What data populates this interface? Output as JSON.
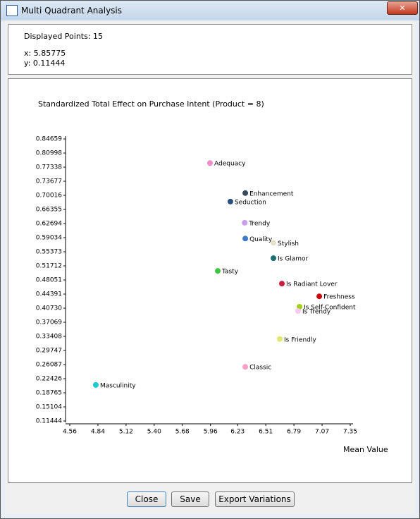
{
  "window": {
    "title": "Multi Quadrant Analysis"
  },
  "info": {
    "count": "Displayed Points: 15",
    "x": "x: 5.85775",
    "y": "y: 0.11444"
  },
  "chart_data": {
    "type": "scatter",
    "title": "Standardized Total Effect on Purchase Intent (Product = 8)",
    "x_label": "Mean Value",
    "labels": [
      "Adequacy",
      "Enhancement",
      "Seduction",
      "Trendy",
      "Quality",
      "Stylish",
      "Is Glamor",
      "Tasty",
      "Is Radiant Lover",
      "Freshness",
      "Is Self-Confident",
      "Is Trendy",
      "Is Friendly",
      "Classic",
      "Masculinity"
    ],
    "x": [
      5.955,
      6.306,
      6.158,
      6.3,
      6.306,
      6.586,
      6.586,
      6.032,
      6.67,
      7.042,
      6.845,
      6.831,
      6.649,
      6.306,
      4.819
    ],
    "values": [
      0.784,
      0.706,
      0.684,
      0.629,
      0.588,
      0.577,
      0.537,
      0.504,
      0.471,
      0.438,
      0.411,
      0.4,
      0.327,
      0.255,
      0.208
    ],
    "colors": [
      "#f08cc8",
      "#3c4860",
      "#2a5080",
      "#c8a0f0",
      "#3c7cc8",
      "#e4e4cc",
      "#1a7070",
      "#3cc83c",
      "#c81e3c",
      "#c80a0a",
      "#a0d010",
      "#f8c8f0",
      "#e0e870",
      "#f8a0c8",
      "#20c8d0"
    ],
    "xlim": [
      4.56,
      7.35
    ],
    "xticks": [
      4.56,
      4.84,
      5.12,
      {
        "value": 5.4,
        "label": "5.40"
      },
      5.68,
      5.96,
      6.23,
      6.51,
      6.79,
      7.07,
      7.35
    ],
    "ylim": [
      0.11444,
      0.84659
    ],
    "yticks": [
      0.11444,
      0.15104,
      0.18765,
      0.22426,
      0.26087,
      0.29747,
      0.33408,
      0.37069,
      {
        "value": 0.4073,
        "label": "0.40730"
      },
      0.44391,
      0.48051,
      0.51712,
      0.55373,
      0.59034,
      0.62694,
      0.66355,
      0.70016,
      0.73677,
      0.77338,
      0.80998,
      0.84659
    ]
  },
  "buttons": [
    "Close",
    "Save",
    "Export Variations"
  ]
}
